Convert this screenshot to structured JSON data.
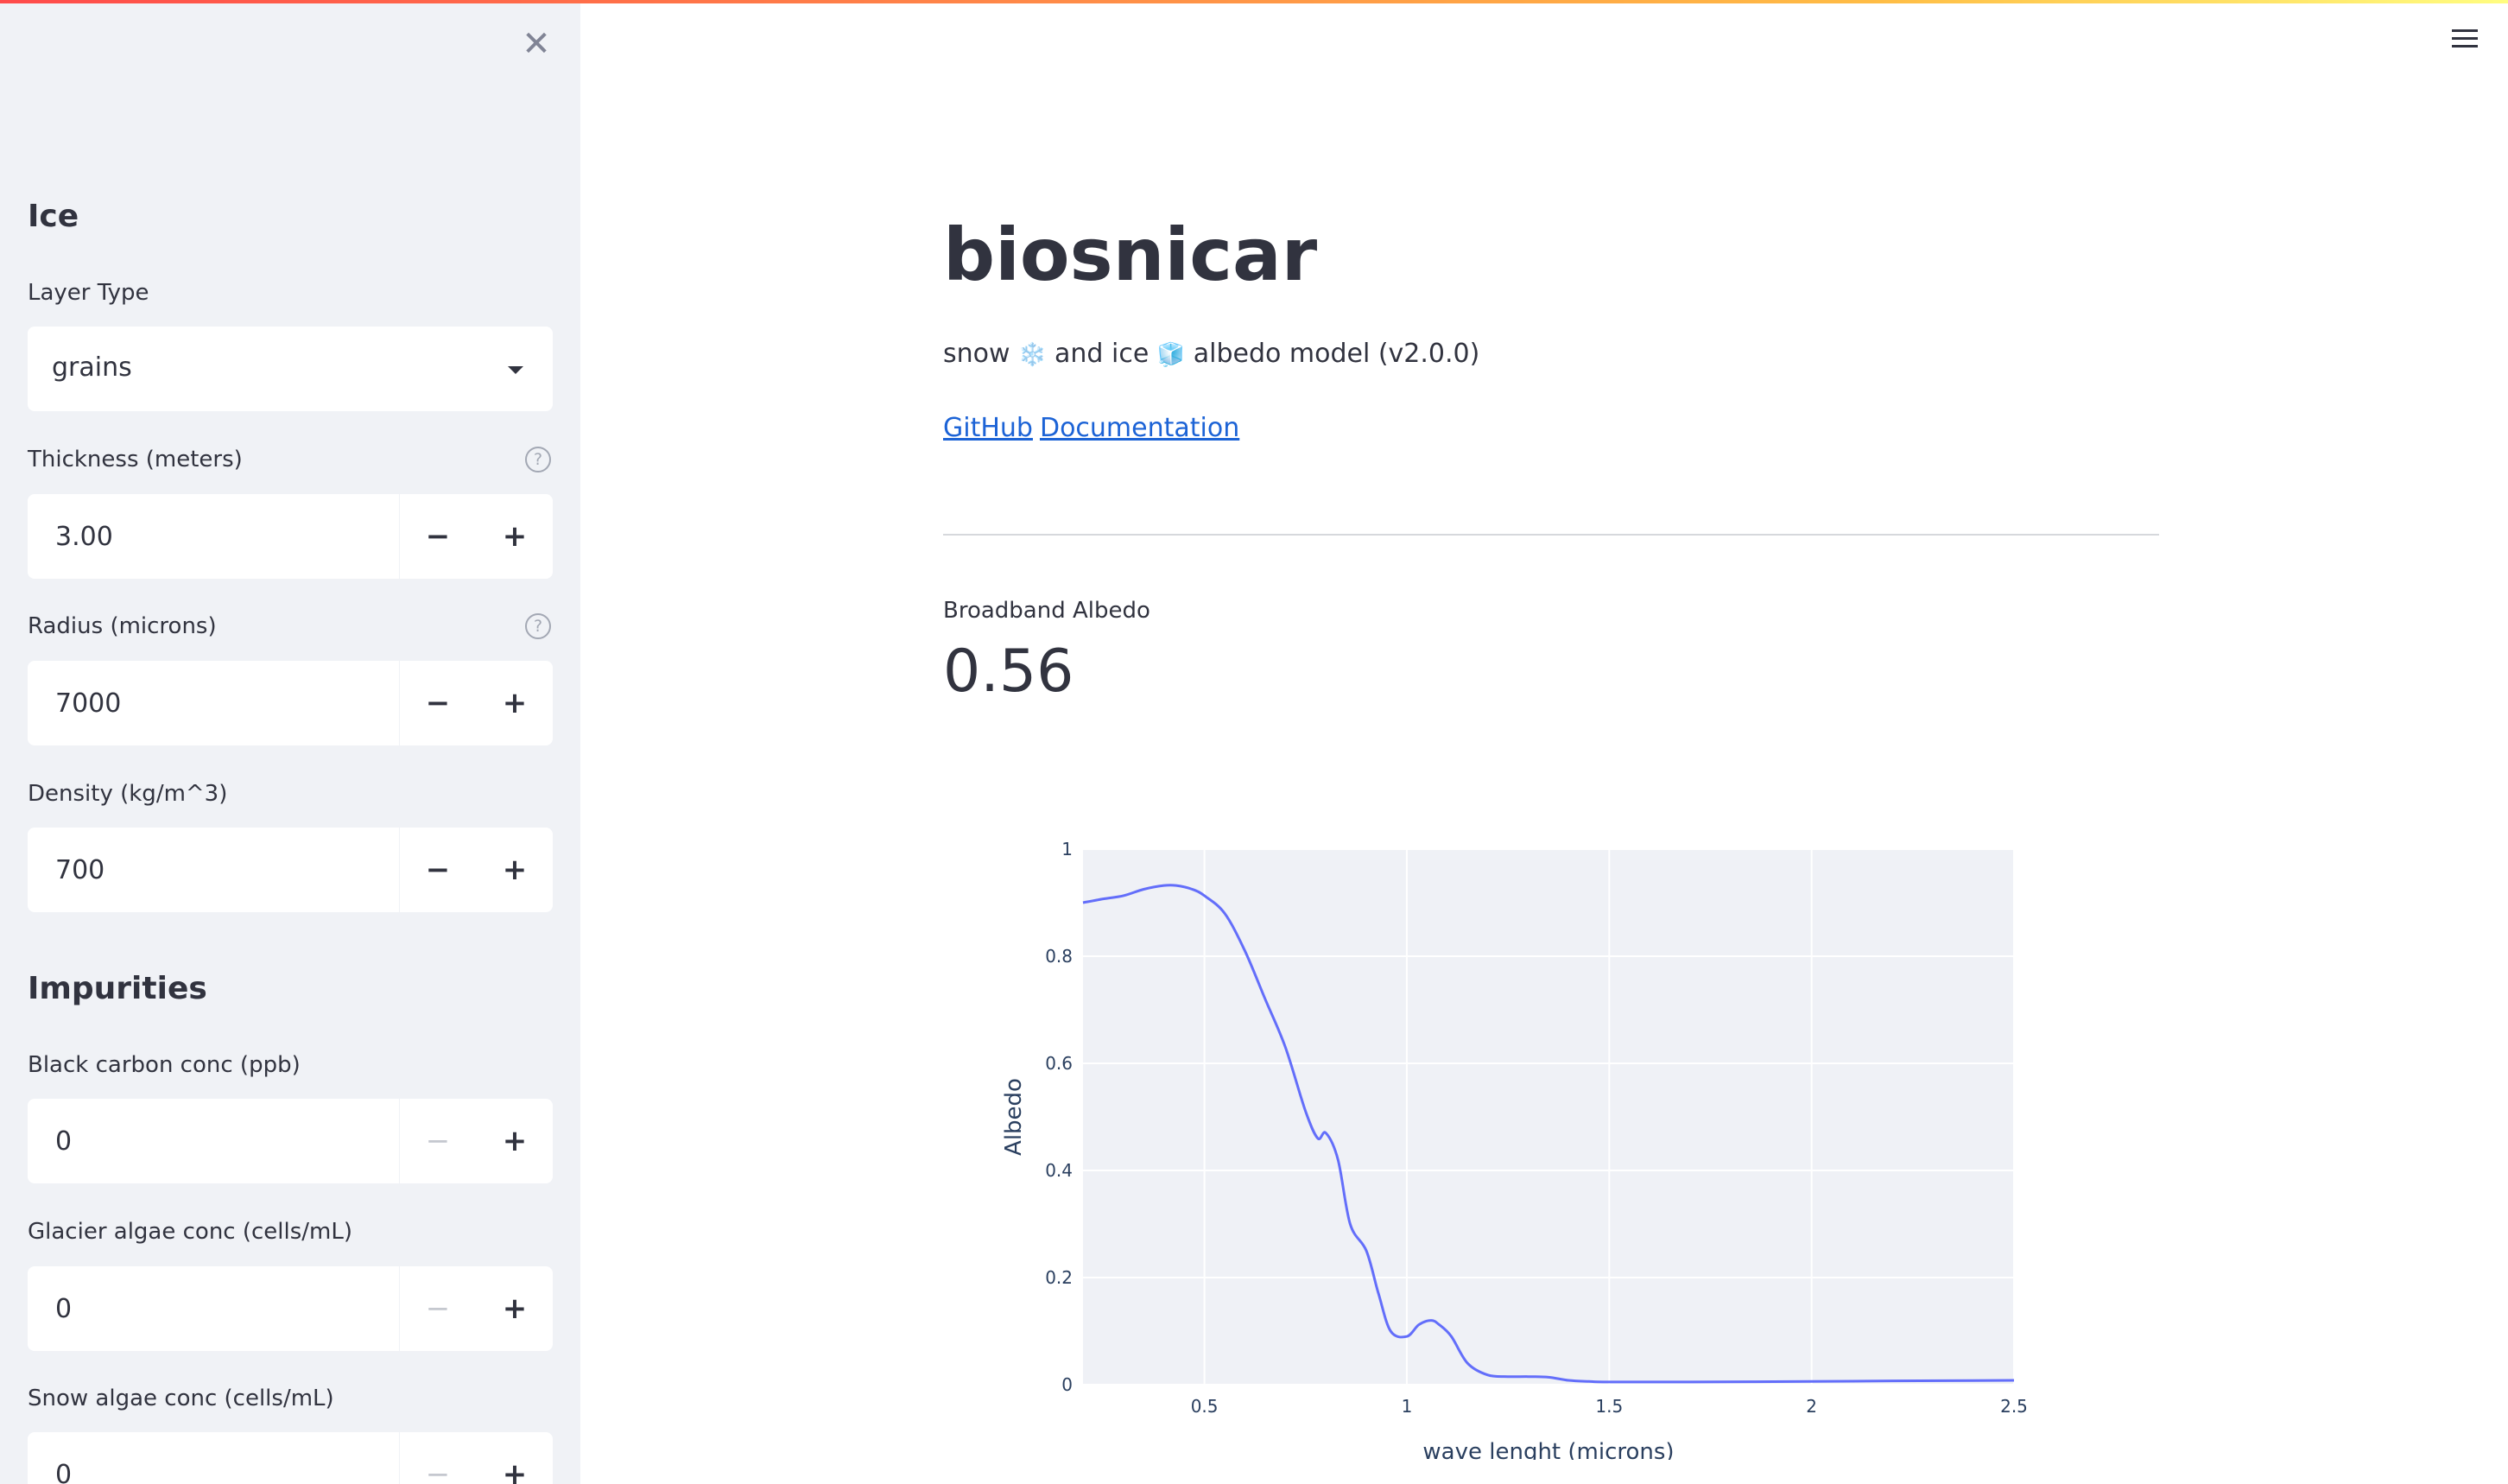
{
  "sidebar": {
    "close_icon": "close-icon",
    "ice": {
      "heading": "Ice",
      "layer_type_label": "Layer Type",
      "layer_type_value": "grains",
      "thickness_label": "Thickness (meters)",
      "thickness_value": "3.00",
      "radius_label": "Radius (microns)",
      "radius_value": "7000",
      "density_label": "Density (kg/m^3)",
      "density_value": "700"
    },
    "impurities": {
      "heading": "Impurities",
      "black_carbon_label": "Black carbon conc (ppb)",
      "black_carbon_value": "0",
      "glacier_algae_label": "Glacier algae conc (cells/mL)",
      "glacier_algae_value": "0",
      "snow_algae_label": "Snow algae conc (cells/mL)",
      "snow_algae_value": "0"
    },
    "stepper_minus": "−",
    "stepper_plus": "+",
    "help_glyph": "?"
  },
  "main": {
    "title": "biosnicar",
    "subtitle_parts": [
      "snow",
      "and ice",
      "albedo model (v2.0.0)"
    ],
    "snow_emoji": "❄️",
    "ice_emoji": "🧊",
    "links": [
      "GitHub",
      "Documentation"
    ],
    "metric_label": "Broadband Albedo",
    "metric_value": "0.56"
  },
  "colors": {
    "accent_line": "#636efa",
    "plot_bg": "#eff1f6",
    "link": "#1c63d6",
    "sidebar_bg": "#f0f2f6"
  },
  "chart_data": {
    "type": "line",
    "title": "",
    "xlabel": "wave lenght (microns)",
    "ylabel": "Albedo",
    "xlim": [
      0.2,
      2.5
    ],
    "ylim": [
      0,
      1
    ],
    "x_ticks": [
      0.5,
      1,
      1.5,
      2,
      2.5
    ],
    "x_tick_labels": [
      "0.5",
      "1",
      "1.5",
      "2",
      "2.5"
    ],
    "y_ticks": [
      0,
      0.2,
      0.4,
      0.6,
      0.8,
      1
    ],
    "y_tick_labels": [
      "0",
      "0.2",
      "0.4",
      "0.6",
      "0.8",
      "1"
    ],
    "grid": true,
    "series": [
      {
        "x": [
          0.2,
          0.25,
          0.3,
          0.35,
          0.4,
          0.43,
          0.47,
          0.5,
          0.55,
          0.6,
          0.65,
          0.7,
          0.75,
          0.78,
          0.8,
          0.83,
          0.86,
          0.9,
          0.93,
          0.96,
          1.0,
          1.03,
          1.06,
          1.08,
          1.11,
          1.15,
          1.2,
          1.25,
          1.3,
          1.35,
          1.4,
          1.45,
          1.5,
          1.7,
          2.0,
          2.2,
          2.5
        ],
        "y": [
          0.9,
          0.907,
          0.913,
          0.925,
          0.932,
          0.932,
          0.925,
          0.913,
          0.88,
          0.81,
          0.72,
          0.63,
          0.51,
          0.46,
          0.47,
          0.42,
          0.3,
          0.25,
          0.17,
          0.1,
          0.09,
          0.112,
          0.12,
          0.112,
          0.09,
          0.04,
          0.018,
          0.015,
          0.015,
          0.014,
          0.008,
          0.006,
          0.005,
          0.005,
          0.006,
          0.007,
          0.008
        ]
      }
    ]
  }
}
